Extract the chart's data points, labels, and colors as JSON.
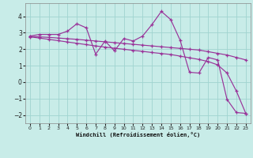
{
  "xlabel": "Windchill (Refroidissement éolien,°C)",
  "bg_color": "#c8ece8",
  "grid_color": "#a0d4d0",
  "line_color": "#993399",
  "xlim": [
    -0.5,
    23.5
  ],
  "ylim": [
    -2.5,
    4.8
  ],
  "xticks": [
    0,
    1,
    2,
    3,
    4,
    5,
    6,
    7,
    8,
    9,
    10,
    11,
    12,
    13,
    14,
    15,
    16,
    17,
    18,
    19,
    20,
    21,
    22,
    23
  ],
  "yticks": [
    -2,
    -1,
    0,
    1,
    2,
    3,
    4
  ],
  "series1_x": [
    0,
    1,
    2,
    3,
    4,
    5,
    6,
    7,
    8,
    9,
    10,
    11,
    12,
    13,
    14,
    15,
    16,
    17,
    18,
    19,
    20,
    21,
    22,
    23
  ],
  "series1_y": [
    2.8,
    2.9,
    2.9,
    2.9,
    3.1,
    3.55,
    3.3,
    1.7,
    2.5,
    1.9,
    2.65,
    2.5,
    2.8,
    3.5,
    4.3,
    3.8,
    2.55,
    0.6,
    0.55,
    1.5,
    1.35,
    -1.05,
    -1.85,
    -1.9
  ],
  "series2_x": [
    0,
    1,
    2,
    3,
    4,
    5,
    6,
    7,
    8,
    9,
    10,
    11,
    12,
    13,
    14,
    15,
    16,
    17,
    18,
    19,
    20,
    21,
    22,
    23
  ],
  "series2_y": [
    2.78,
    2.75,
    2.72,
    2.68,
    2.64,
    2.6,
    2.55,
    2.5,
    2.45,
    2.4,
    2.35,
    2.3,
    2.25,
    2.2,
    2.15,
    2.1,
    2.05,
    2.0,
    1.95,
    1.85,
    1.75,
    1.65,
    1.5,
    1.35
  ],
  "series3_x": [
    0,
    1,
    2,
    3,
    4,
    5,
    6,
    7,
    8,
    9,
    10,
    11,
    12,
    13,
    14,
    15,
    16,
    17,
    18,
    19,
    20,
    21,
    22,
    23
  ],
  "series3_y": [
    2.75,
    2.68,
    2.6,
    2.52,
    2.44,
    2.36,
    2.28,
    2.2,
    2.13,
    2.06,
    2.0,
    1.93,
    1.87,
    1.8,
    1.74,
    1.68,
    1.58,
    1.48,
    1.38,
    1.25,
    1.05,
    0.55,
    -0.55,
    -1.9
  ]
}
